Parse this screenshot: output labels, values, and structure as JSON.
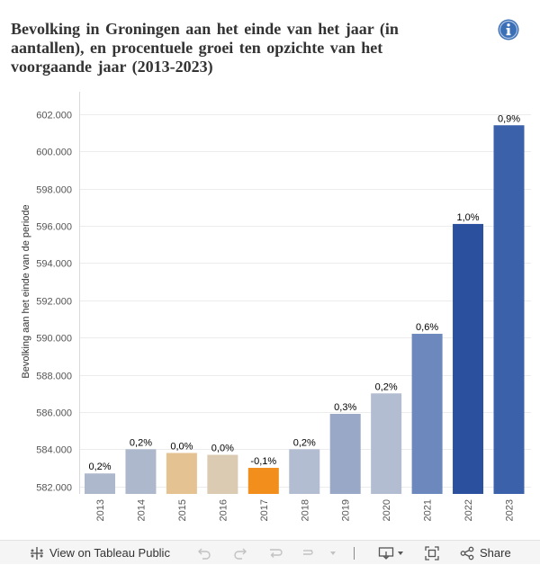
{
  "chart_data": {
    "type": "bar",
    "title": "Bevolking in Groningen aan het einde van het jaar (in aantallen), en procentuele groei ten opzichte van het voorgaande jaar (2013-2023)",
    "categories": [
      "2013",
      "2014",
      "2015",
      "2016",
      "2017",
      "2018",
      "2019",
      "2020",
      "2021",
      "2022",
      "2023"
    ],
    "values": [
      582700,
      584000,
      583800,
      583700,
      583000,
      584000,
      585900,
      587000,
      590200,
      596100,
      601400
    ],
    "data_labels": [
      "0,2%",
      "0,2%",
      "0,0%",
      "0,0%",
      "-0,1%",
      "0,2%",
      "0,3%",
      "0,2%",
      "0,6%",
      "1,0%",
      "0,9%"
    ],
    "colors": [
      "#aeb8cd",
      "#aeb8cd",
      "#e5c291",
      "#dccbb3",
      "#f28e1c",
      "#b3bdd1",
      "#98a8c6",
      "#b3bdd1",
      "#6c88bd",
      "#2b509e",
      "#3a61a9"
    ],
    "ylabel": "Bevolking aan het einde van de periode",
    "xlabel": "",
    "ylim": [
      581600,
      603200
    ],
    "yticks": [
      582000,
      584000,
      586000,
      588000,
      590000,
      592000,
      594000,
      596000,
      598000,
      600000,
      602000
    ],
    "ytick_labels": [
      "582.000",
      "584.000",
      "586.000",
      "588.000",
      "590.000",
      "592.000",
      "594.000",
      "596.000",
      "598.000",
      "600.000",
      "602.000"
    ],
    "grid": true
  },
  "toolbar": {
    "view_label": "View on Tableau Public",
    "share_label": "Share"
  },
  "icons": {
    "info": "info-icon",
    "tableau": "tableau-logo-icon",
    "undo": "undo-icon",
    "redo": "redo-icon",
    "revert": "revert-icon",
    "download": "download-icon",
    "fullscreen": "fullscreen-icon",
    "share": "share-icon"
  }
}
